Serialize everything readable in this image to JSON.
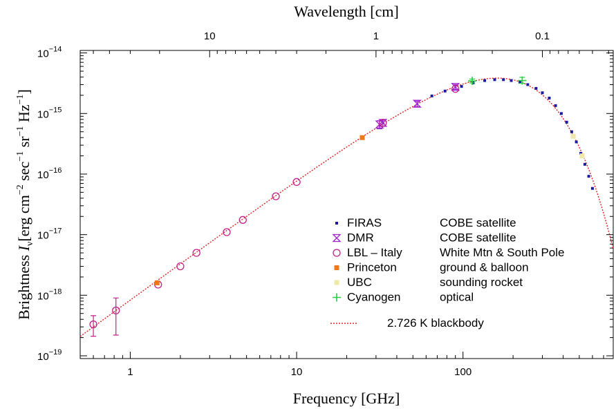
{
  "chart_data": {
    "type": "scatter",
    "title": "",
    "top_axis": {
      "label": "Wavelength [cm]",
      "tick_labels": [
        {
          "value": 10,
          "label": "10"
        },
        {
          "value": 1,
          "label": "1"
        },
        {
          "value": 0.1,
          "label": "0.1"
        }
      ]
    },
    "xlabel": "Frequency [GHz]",
    "ylabel": {
      "prefix": "Brightness ",
      "symbol": "I",
      "symbol_sub": "ν",
      "units": "[erg cm",
      "exp1": "−2",
      "u2": " sec",
      "exp2": "−1",
      "u3": " sr",
      "exp3": "−1",
      "u4": " Hz",
      "exp4": "−1",
      "close": "]"
    },
    "x_scale": "log",
    "y_scale": "log",
    "xlim": [
      0.5,
      800
    ],
    "ylim": [
      9e-20,
      1.1e-14
    ],
    "x_tick_labels": [
      {
        "value": 1,
        "label": "1"
      },
      {
        "value": 10,
        "label": "10"
      },
      {
        "value": 100,
        "label": "100"
      }
    ],
    "y_tick_labels": [
      {
        "value": 1e-19,
        "base": "10",
        "exp": "−19"
      },
      {
        "value": 1e-18,
        "base": "10",
        "exp": "−18"
      },
      {
        "value": 1e-17,
        "base": "10",
        "exp": "−17"
      },
      {
        "value": 1e-16,
        "base": "10",
        "exp": "−16"
      },
      {
        "value": 1e-15,
        "base": "10",
        "exp": "−15"
      },
      {
        "value": 1e-14,
        "base": "10",
        "exp": "−14"
      }
    ],
    "legend_position": "center-right",
    "series": [
      {
        "name": "FIRAS",
        "note": "COBE satellite",
        "marker": "square-small",
        "color": "#1a1aa0",
        "points": [
          [
            65,
            1.95e-15
          ],
          [
            78,
            2.35e-15
          ],
          [
            98,
            2.8e-15
          ],
          [
            115,
            3.2e-15
          ],
          [
            135,
            3.5e-15
          ],
          [
            155,
            3.62e-15
          ],
          [
            175,
            3.62e-15
          ],
          [
            195,
            3.5e-15
          ],
          [
            220,
            3.3e-15
          ],
          [
            245,
            3e-15
          ],
          [
            275,
            2.6e-15
          ],
          [
            300,
            2.2e-15
          ],
          [
            330,
            1.8e-15
          ],
          [
            360,
            1.35e-15
          ],
          [
            390,
            1e-15
          ],
          [
            420,
            7.2e-16
          ],
          [
            450,
            5e-16
          ],
          [
            480,
            3.4e-16
          ],
          [
            510,
            2.2e-16
          ],
          [
            540,
            1.45e-16
          ],
          [
            570,
            9.2e-17
          ],
          [
            600,
            5.8e-17
          ]
        ]
      },
      {
        "name": "DMR",
        "note": "COBE satellite",
        "marker": "hourglass",
        "color": "#a020d0",
        "points": [
          {
            "x": 31.5,
            "y": 6.6e-16,
            "err_lo": 5.6e-16,
            "err_hi": 7.6e-16
          },
          {
            "x": 33,
            "y": 7e-16,
            "err_lo": 6.2e-16,
            "err_hi": 7.8e-16
          },
          {
            "x": 53,
            "y": 1.45e-15,
            "err_lo": 1.3e-15,
            "err_hi": 1.6e-15
          },
          {
            "x": 90,
            "y": 2.75e-15,
            "err_lo": 2.5e-15,
            "err_hi": 3e-15
          }
        ]
      },
      {
        "name": "LBL – Italy",
        "note": "White Mtn & South Pole",
        "marker": "circle-open",
        "color": "#c0208a",
        "points": [
          {
            "x": 0.6,
            "y": 3.3e-19,
            "err_lo": 2.1e-19,
            "err_hi": 4.6e-19
          },
          {
            "x": 0.82,
            "y": 5.6e-19,
            "err_lo": 2.2e-19,
            "err_hi": 9e-19
          },
          {
            "x": 1.47,
            "y": 1.5e-18
          },
          {
            "x": 2.0,
            "y": 3e-18
          },
          {
            "x": 2.5,
            "y": 5e-18
          },
          {
            "x": 3.8,
            "y": 1.1e-17
          },
          {
            "x": 4.75,
            "y": 1.75e-17
          },
          {
            "x": 7.5,
            "y": 4.3e-17
          },
          {
            "x": 10,
            "y": 7.4e-17
          },
          {
            "x": 33,
            "y": 7e-16
          },
          {
            "x": 90,
            "y": 2.55e-15
          }
        ]
      },
      {
        "name": "Princeton",
        "note": "ground & balloon",
        "marker": "square-filled",
        "color": "#f07818",
        "points": [
          [
            1.45,
            1.6e-18
          ],
          [
            24.8,
            4e-16
          ]
        ]
      },
      {
        "name": "UBC",
        "note": "sounding rocket",
        "marker": "square-filled",
        "color": "#f0e8a8",
        "points": [
          [
            460,
            4.2e-16
          ],
          [
            520,
            2e-16
          ]
        ]
      },
      {
        "name": "Cyanogen",
        "note": "optical",
        "marker": "plus",
        "color": "#20d040",
        "points": [
          {
            "x": 113.6,
            "y": 3.45e-15,
            "err_lo": 3.2e-15,
            "err_hi": 3.7e-15
          },
          {
            "x": 227,
            "y": 3.5e-15,
            "err_lo": 3.15e-15,
            "err_hi": 3.95e-15
          }
        ]
      }
    ],
    "curve": {
      "name": "2.726 K blackbody",
      "temperature_K": 2.726,
      "style": "dotted",
      "color": "#e02020"
    }
  }
}
